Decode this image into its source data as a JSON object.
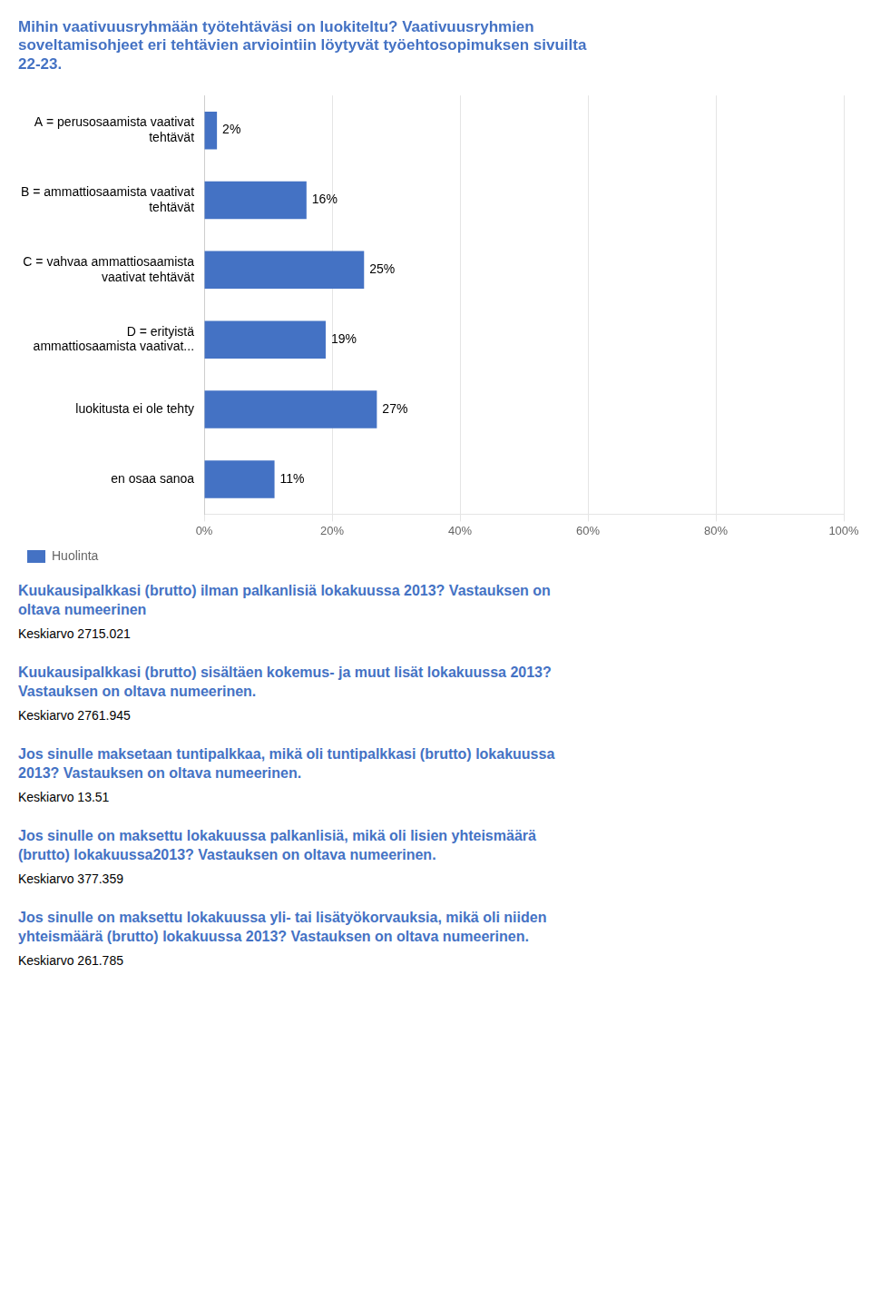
{
  "chart_data": {
    "type": "bar",
    "orientation": "horizontal",
    "title": "Mihin vaativuusryhmään työtehtäväsi on luokiteltu? Vaativuusryhmien\nsoveltamisohjeet eri tehtävien arviointiin löytyvät työehtosopimuksen sivuilta\n22-23.",
    "categories": [
      "A = perusosaamista vaativat\ntehtävät",
      "B = ammattiosaamista vaativat\ntehtävät",
      "C = vahvaa ammattiosaamista\nvaativat tehtävät",
      "D = erityistä\nammattiosaamista vaativat...",
      "luokitusta ei ole tehty",
      "en osaa sanoa"
    ],
    "series": [
      {
        "name": "Huolinta",
        "color": "#4472C4",
        "values": [
          2,
          16,
          25,
          19,
          27,
          11
        ],
        "value_labels": [
          "2%",
          "16%",
          "25%",
          "19%",
          "27%",
          "11%"
        ]
      }
    ],
    "data_labels": true,
    "xlim": [
      0,
      100
    ],
    "xticks": [
      {
        "value": 0,
        "label": "0%"
      },
      {
        "value": 20,
        "label": "20%"
      },
      {
        "value": 40,
        "label": "40%"
      },
      {
        "value": 60,
        "label": "60%"
      },
      {
        "value": 80,
        "label": "80%"
      },
      {
        "value": 100,
        "label": "100%"
      }
    ],
    "grid": true,
    "legend": "bottom",
    "annotations": [
      [
        "Kuukausipalkkasi (brutto) ilman palkanlisiä lokakuussa 2013? Vastauksen on\noltava numeerinen",
        "Keskiarvo 2715.021"
      ],
      [
        "Kuukausipalkkasi (brutto) sisältäen kokemus- ja muut lisät lokakuussa 2013?\nVastauksen on oltava numeerinen.",
        "Keskiarvo 2761.945"
      ],
      [
        "Jos sinulle maksetaan tuntipalkkaa, mikä oli tuntipalkkasi (brutto) lokakuussa\n2013? Vastauksen on oltava numeerinen.",
        "Keskiarvo 13.51"
      ],
      [
        "Jos sinulle on maksettu lokakuussa palkanlisiä, mikä oli lisien yhteismäärä\n(brutto) lokakuussa2013? Vastauksen on oltava numeerinen.",
        "Keskiarvo 377.359"
      ],
      [
        "Jos sinulle on maksettu lokakuussa yli- tai lisätyökorvauksia, mikä oli niiden\nyhteismäärä (brutto) lokakuussa 2013? Vastauksen on oltava numeerinen.",
        "Keskiarvo 261.785"
      ]
    ]
  }
}
